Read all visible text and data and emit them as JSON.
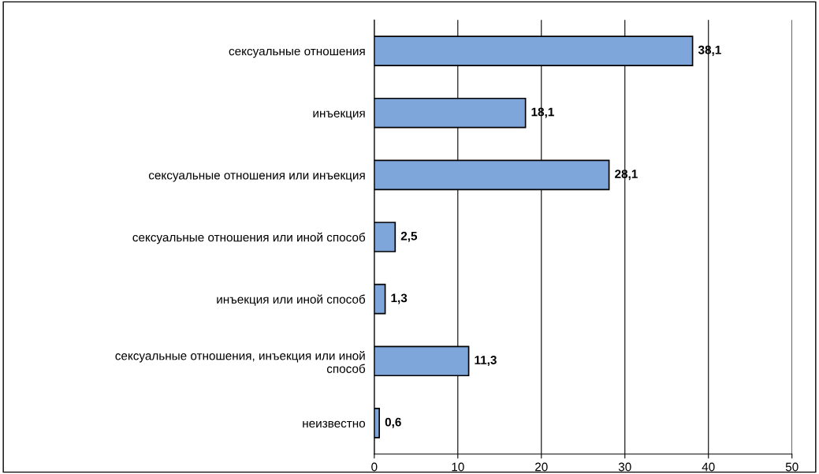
{
  "chart_data": {
    "type": "bar",
    "orientation": "horizontal",
    "categories": [
      "сексуальные отношения",
      "инъекция",
      "сексуальные отношения или инъекция",
      "сексуальные отношения или иной способ",
      "инъекция или иной способ",
      "сексуальные отношения, инъекция или иной\nспособ",
      "неизвестно"
    ],
    "values": [
      38.1,
      18.1,
      28.1,
      2.5,
      1.3,
      11.3,
      0.6
    ],
    "value_labels": [
      "38,1",
      "18,1",
      "28,1",
      "2,5",
      "1,3",
      "11,3",
      "0,6"
    ],
    "color": "#7ea6da",
    "xlim": [
      0,
      50
    ],
    "xticks": [
      0,
      10,
      20,
      30,
      40,
      50
    ],
    "grid": "x",
    "legend": false
  }
}
